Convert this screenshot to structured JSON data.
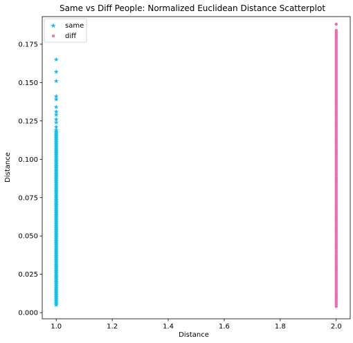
{
  "chart_data": {
    "type": "scatter",
    "title": "Same vs Diff People: Normalized Euclidean Distance Scatterplot",
    "xlabel": "Distance",
    "ylabel": "Distance",
    "xlim": [
      0.95,
      2.05
    ],
    "ylim": [
      -0.004,
      0.193
    ],
    "x_ticks": [
      {
        "value": 1.0,
        "label": "1.0"
      },
      {
        "value": 1.2,
        "label": "1.2"
      },
      {
        "value": 1.4,
        "label": "1.4"
      },
      {
        "value": 1.6,
        "label": "1.6"
      },
      {
        "value": 1.8,
        "label": "1.8"
      },
      {
        "value": 2.0,
        "label": "2.0"
      }
    ],
    "y_ticks": [
      {
        "value": 0.0,
        "label": "0.000"
      },
      {
        "value": 0.025,
        "label": "0.025"
      },
      {
        "value": 0.05,
        "label": "0.050"
      },
      {
        "value": 0.075,
        "label": "0.075"
      },
      {
        "value": 0.1,
        "label": "0.100"
      },
      {
        "value": 0.125,
        "label": "0.125"
      },
      {
        "value": 0.15,
        "label": "0.150"
      },
      {
        "value": 0.175,
        "label": "0.175"
      }
    ],
    "grid": false,
    "legend": {
      "position": "top-left"
    },
    "series": [
      {
        "name": "same",
        "marker": "star",
        "color": "#10bff0",
        "x": 1.0,
        "dense_range": [
          0.005,
          0.118
        ],
        "y": [
          0.165,
          0.157,
          0.151,
          0.141,
          0.139,
          0.134,
          0.131,
          0.129,
          0.126,
          0.124,
          0.121,
          0.119
        ]
      },
      {
        "name": "diff",
        "marker": "circle",
        "color": "#f06aaf",
        "x": 2.0,
        "dense_range": [
          0.004,
          0.183
        ],
        "y": [
          0.188,
          0.184
        ]
      }
    ]
  }
}
